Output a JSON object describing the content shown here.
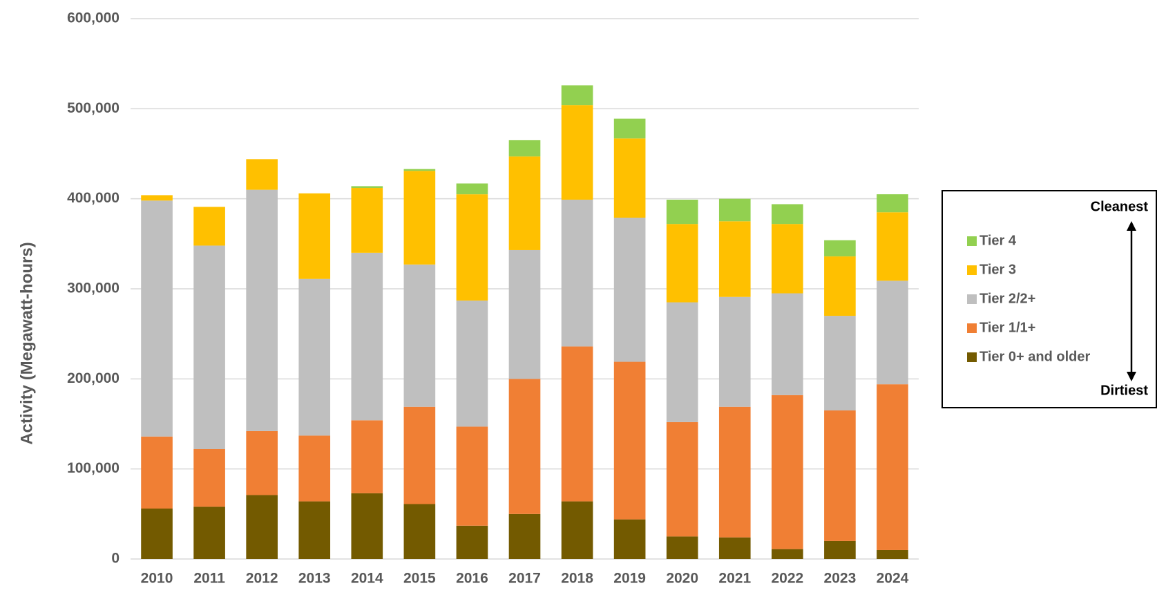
{
  "chart_data": {
    "type": "stacked_bar",
    "y_label": "Activity (Megawatt-hours)",
    "categories": [
      "2010",
      "2011",
      "2012",
      "2013",
      "2014",
      "2015",
      "2016",
      "2017",
      "2018",
      "2019",
      "2020",
      "2021",
      "2022",
      "2023",
      "2024"
    ],
    "series": [
      {
        "name": "Tier 0+ and older",
        "color": "#735A00",
        "values": [
          56000,
          58000,
          71000,
          64000,
          73000,
          61000,
          37000,
          50000,
          64000,
          44000,
          25000,
          24000,
          11000,
          20000,
          10000
        ]
      },
      {
        "name": "Tier 1/1+",
        "color": "#F07F34",
        "values": [
          80000,
          64000,
          71000,
          73000,
          81000,
          108000,
          110000,
          150000,
          172000,
          175000,
          127000,
          145000,
          171000,
          145000,
          184000
        ]
      },
      {
        "name": "Tier 2/2+",
        "color": "#BFBFBF",
        "values": [
          262000,
          226000,
          268000,
          174000,
          186000,
          158000,
          140000,
          143000,
          163000,
          160000,
          133000,
          122000,
          113000,
          105000,
          115000
        ]
      },
      {
        "name": "Tier 3",
        "color": "#FFC000",
        "values": [
          6000,
          43000,
          34000,
          95000,
          72000,
          104000,
          118000,
          104000,
          105000,
          88000,
          87000,
          84000,
          77000,
          66000,
          76000
        ]
      },
      {
        "name": "Tier 4",
        "color": "#92D050",
        "values": [
          0,
          0,
          0,
          0,
          2000,
          2000,
          12000,
          18000,
          22000,
          22000,
          27000,
          25000,
          22000,
          18000,
          20000
        ]
      }
    ],
    "ylim": [
      0,
      600000
    ],
    "yticks": [
      0,
      {
        "value": 100000,
        "label": "100,000"
      },
      {
        "value": 200000,
        "label": "200,000"
      },
      {
        "value": 300000,
        "label": "300,000"
      },
      {
        "value": 400000,
        "label": "400,000"
      },
      {
        "value": 500000,
        "label": "500,000"
      },
      {
        "value": 600000,
        "label": "600,000"
      }
    ],
    "grid": true,
    "legend": "right",
    "annotations": [
      "Cleanest",
      "Dirtiest"
    ]
  }
}
